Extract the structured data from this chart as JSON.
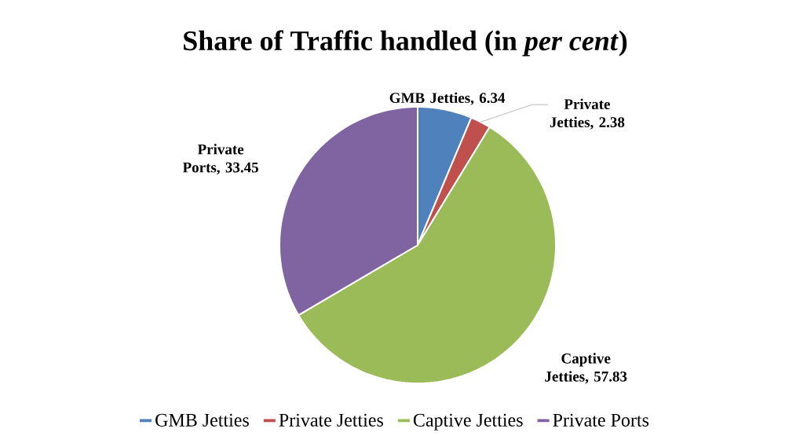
{
  "chart_data": {
    "type": "pie",
    "title": "Share of Traffic handled (in *per cent*)",
    "categories": [
      "GMB Jetties",
      "Private Jetties",
      "Captive Jetties",
      "Private Ports"
    ],
    "values": [
      6.34,
      2.38,
      57.83,
      33.45
    ],
    "colors": [
      "#4f81bd",
      "#c0504d",
      "#9bbb59",
      "#8064a2"
    ],
    "value_labels": [
      "GMB Jetties, 6.34",
      "Private Jetties, 2.38",
      "Captive Jetties, 57.83",
      "Private Ports, 33.45"
    ],
    "legend": "bottom"
  }
}
